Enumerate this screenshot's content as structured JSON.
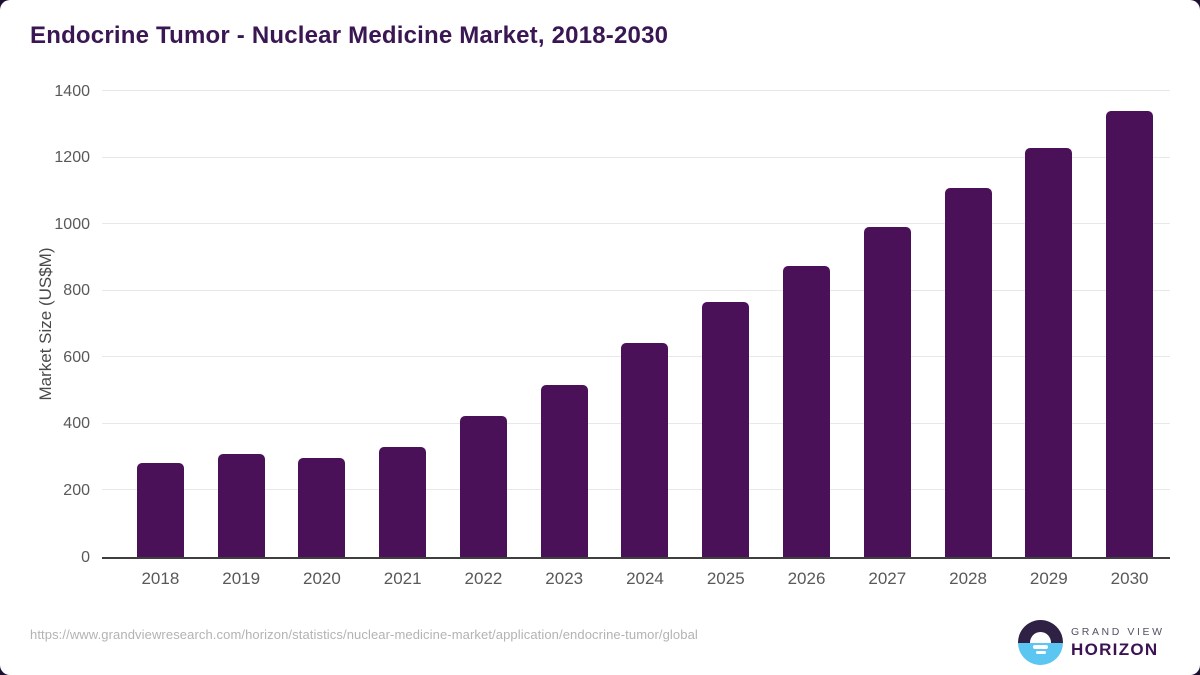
{
  "page": {
    "background_color": "#1d0f31",
    "card_color": "#ffffff"
  },
  "chart_data": {
    "type": "bar",
    "title": "Endocrine Tumor - Nuclear Medicine Market, 2018-2030",
    "xlabel": "",
    "ylabel": "Market Size (US$M)",
    "categories": [
      "2018",
      "2019",
      "2020",
      "2021",
      "2022",
      "2023",
      "2024",
      "2025",
      "2026",
      "2027",
      "2028",
      "2029",
      "2030"
    ],
    "values": [
      283,
      308,
      296,
      332,
      425,
      516,
      642,
      765,
      875,
      990,
      1110,
      1228,
      1340
    ],
    "ylim": [
      0,
      1400
    ],
    "yticks": [
      0,
      200,
      400,
      600,
      800,
      1000,
      1200,
      1400
    ],
    "bar_color": "#4a1159",
    "grid": true,
    "legend": false,
    "title_color": "#3a1653",
    "axis_text_color": "#595959",
    "gridline_color": "#e8e8e8"
  },
  "footer": {
    "source_url": "https://www.grandviewresearch.com/horizon/statistics/nuclear-medicine-market/application/endocrine-tumor/global",
    "logo": {
      "line1": "GRAND VIEW",
      "line2": "HORIZON",
      "circle_top_color": "#2e2144",
      "circle_bottom_color": "#5bc6f2"
    }
  }
}
